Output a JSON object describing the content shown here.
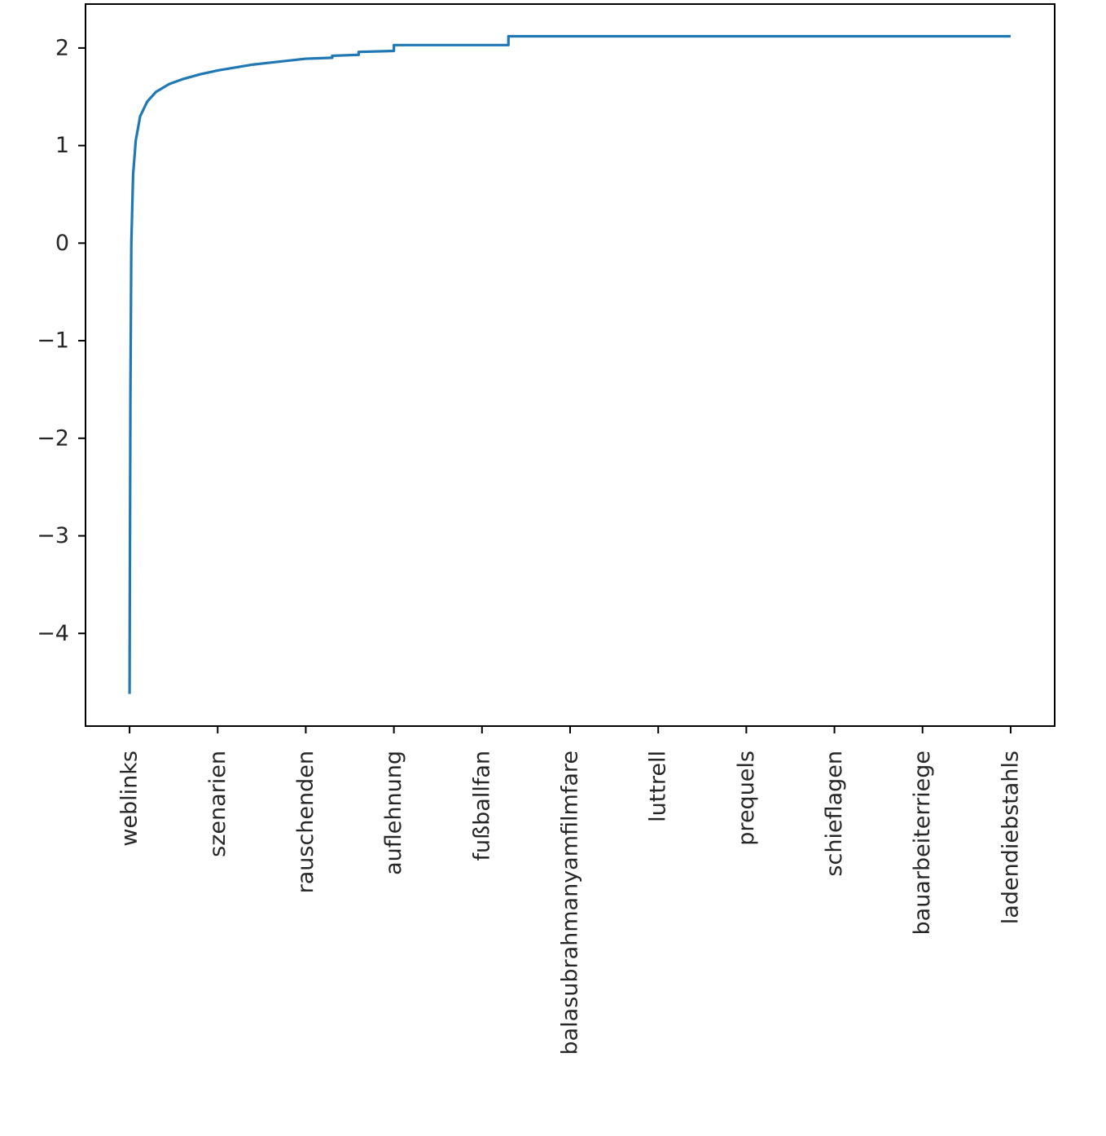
{
  "chart_data": {
    "type": "line",
    "title": "",
    "xlabel": "",
    "ylabel": "",
    "x_tick_labels": [
      "weblinks",
      "szenarien",
      "rauschenden",
      "auflehnung",
      "fußballfan",
      "balasubrahmanyamfilmfare",
      "luttrell",
      "prequels",
      "schieflagen",
      "bauarbeiterriege",
      "ladendiebstahls"
    ],
    "y_ticks": [
      -4,
      -3,
      -2,
      -1,
      0,
      1,
      2
    ],
    "y_tick_labels": [
      "−4",
      "−3",
      "−2",
      "−1",
      "0",
      "1",
      "2"
    ],
    "ylim": [
      -4.95,
      2.45
    ],
    "xlim": [
      -0.5,
      10.5
    ],
    "grid": false,
    "series_color": "#1f77b4",
    "series": [
      {
        "x": [
          0,
          0.003,
          0.01,
          0.02,
          0.04,
          0.07,
          0.12,
          0.2,
          0.3,
          0.45,
          0.6,
          0.8,
          1.0,
          1.2,
          1.4,
          1.6,
          1.8,
          2.0,
          2.3,
          2.3,
          2.6,
          2.6,
          3.0,
          3.0,
          4.3,
          4.3,
          10.0
        ],
        "y": [
          -4.62,
          -3.5,
          -1.5,
          0.0,
          0.7,
          1.05,
          1.3,
          1.45,
          1.55,
          1.63,
          1.68,
          1.73,
          1.77,
          1.8,
          1.83,
          1.85,
          1.87,
          1.89,
          1.9,
          1.92,
          1.93,
          1.96,
          1.97,
          2.03,
          2.03,
          2.12,
          2.12
        ]
      }
    ]
  }
}
